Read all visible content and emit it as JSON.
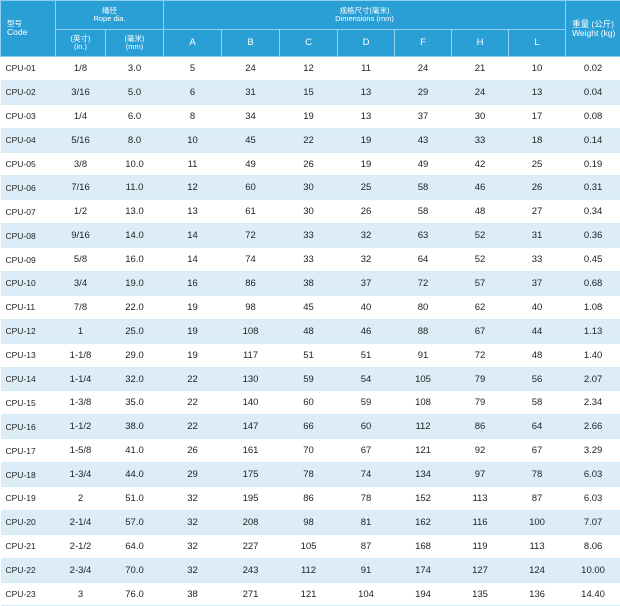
{
  "header": {
    "code_cn": "型号",
    "code_en": "Code",
    "rope_cn": "绳径",
    "rope_en": "Rope dia.",
    "dims_cn": "规格尺寸(毫米)",
    "dims_en": "Dimensions (mm)",
    "weight_cn": "重量 (公斤)",
    "weight_en": "Weight (kg)",
    "inch_cn": "(英寸)",
    "inch_en": "(in.)",
    "mm_cn": "(毫米)",
    "mm_en": "(mm)",
    "dim_cols": [
      "A",
      "B",
      "C",
      "D",
      "F",
      "H",
      "L"
    ]
  },
  "rows": [
    [
      "CPU-01",
      "1/8",
      "3.0",
      "5",
      "24",
      "12",
      "11",
      "24",
      "21",
      "10",
      "0.02"
    ],
    [
      "CPU-02",
      "3/16",
      "5.0",
      "6",
      "31",
      "15",
      "13",
      "29",
      "24",
      "13",
      "0.04"
    ],
    [
      "CPU-03",
      "1/4",
      "6.0",
      "8",
      "34",
      "19",
      "13",
      "37",
      "30",
      "17",
      "0.08"
    ],
    [
      "CPU-04",
      "5/16",
      "8.0",
      "10",
      "45",
      "22",
      "19",
      "43",
      "33",
      "18",
      "0.14"
    ],
    [
      "CPU-05",
      "3/8",
      "10.0",
      "11",
      "49",
      "26",
      "19",
      "49",
      "42",
      "25",
      "0.19"
    ],
    [
      "CPU-06",
      "7/16",
      "11.0",
      "12",
      "60",
      "30",
      "25",
      "58",
      "46",
      "26",
      "0.31"
    ],
    [
      "CPU-07",
      "1/2",
      "13.0",
      "13",
      "61",
      "30",
      "26",
      "58",
      "48",
      "27",
      "0.34"
    ],
    [
      "CPU-08",
      "9/16",
      "14.0",
      "14",
      "72",
      "33",
      "32",
      "63",
      "52",
      "31",
      "0.36"
    ],
    [
      "CPU-09",
      "5/8",
      "16.0",
      "14",
      "74",
      "33",
      "32",
      "64",
      "52",
      "33",
      "0.45"
    ],
    [
      "CPU-10",
      "3/4",
      "19.0",
      "16",
      "86",
      "38",
      "37",
      "72",
      "57",
      "37",
      "0.68"
    ],
    [
      "CPU-11",
      "7/8",
      "22.0",
      "19",
      "98",
      "45",
      "40",
      "80",
      "62",
      "40",
      "1.08"
    ],
    [
      "CPU-12",
      "1",
      "25.0",
      "19",
      "108",
      "48",
      "46",
      "88",
      "67",
      "44",
      "1.13"
    ],
    [
      "CPU-13",
      "1-1/8",
      "29.0",
      "19",
      "117",
      "51",
      "51",
      "91",
      "72",
      "48",
      "1.40"
    ],
    [
      "CPU-14",
      "1-1/4",
      "32.0",
      "22",
      "130",
      "59",
      "54",
      "105",
      "79",
      "56",
      "2.07"
    ],
    [
      "CPU-15",
      "1-3/8",
      "35.0",
      "22",
      "140",
      "60",
      "59",
      "108",
      "79",
      "58",
      "2.34"
    ],
    [
      "CPU-16",
      "1-1/2",
      "38.0",
      "22",
      "147",
      "66",
      "60",
      "112",
      "86",
      "64",
      "2.66"
    ],
    [
      "CPU-17",
      "1-5/8",
      "41.0",
      "26",
      "161",
      "70",
      "67",
      "121",
      "92",
      "67",
      "3.29"
    ],
    [
      "CPU-18",
      "1-3/4",
      "44.0",
      "29",
      "175",
      "78",
      "74",
      "134",
      "97",
      "78",
      "6.03"
    ],
    [
      "CPU-19",
      "2",
      "51.0",
      "32",
      "195",
      "86",
      "78",
      "152",
      "113",
      "87",
      "6.03"
    ],
    [
      "CPU-20",
      "2-1/4",
      "57.0",
      "32",
      "208",
      "98",
      "81",
      "162",
      "116",
      "100",
      "7.07"
    ],
    [
      "CPU-21",
      "2-1/2",
      "64.0",
      "32",
      "227",
      "105",
      "87",
      "168",
      "119",
      "113",
      "8.06"
    ],
    [
      "CPU-22",
      "2-3/4",
      "70.0",
      "32",
      "243",
      "112",
      "91",
      "174",
      "127",
      "124",
      "10.00"
    ],
    [
      "CPU-23",
      "3",
      "76.0",
      "38",
      "271",
      "121",
      "104",
      "194",
      "135",
      "136",
      "14.40"
    ]
  ]
}
